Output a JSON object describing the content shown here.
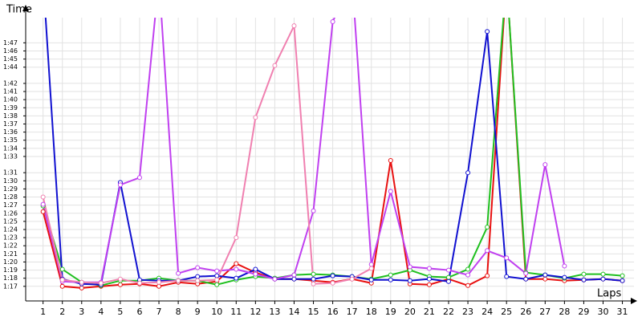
{
  "chart_data": {
    "type": "line",
    "y_label": "Time",
    "x_label": "Laps",
    "x": [
      1,
      2,
      3,
      4,
      5,
      6,
      7,
      8,
      9,
      10,
      11,
      12,
      13,
      14,
      15,
      16,
      17,
      18,
      19,
      20,
      21,
      22,
      23,
      24,
      25,
      26,
      27,
      28,
      29,
      30,
      31
    ],
    "xlim": [
      0.1,
      31.6
    ],
    "xticks": [
      1,
      2,
      3,
      4,
      5,
      6,
      7,
      8,
      9,
      10,
      11,
      12,
      13,
      14,
      15,
      16,
      17,
      18,
      19,
      20,
      21,
      22,
      23,
      24,
      25,
      26,
      27,
      28,
      29,
      30,
      31
    ],
    "ylim": [
      75.2,
      110.1
    ],
    "yticks": [
      {
        "value": 77,
        "label": "1:17"
      },
      {
        "value": 78,
        "label": "1:18"
      },
      {
        "value": 79,
        "label": "1:19"
      },
      {
        "value": 80,
        "label": "1:20"
      },
      {
        "value": 81,
        "label": "1:21"
      },
      {
        "value": 82,
        "label": "1:22"
      },
      {
        "value": 83,
        "label": "1:23"
      },
      {
        "value": 84,
        "label": "1:24"
      },
      {
        "value": 85,
        "label": "1:25"
      },
      {
        "value": 86,
        "label": "1:26"
      },
      {
        "value": 87,
        "label": "1:27"
      },
      {
        "value": 88,
        "label": "1:28"
      },
      {
        "value": 89,
        "label": "1:29"
      },
      {
        "value": 90,
        "label": "1:30"
      },
      {
        "value": 91,
        "label": "1:31"
      },
      {
        "value": 93,
        "label": "1:33"
      },
      {
        "value": 94,
        "label": "1:34"
      },
      {
        "value": 95,
        "label": "1:35"
      },
      {
        "value": 96,
        "label": "1:36"
      },
      {
        "value": 97,
        "label": "1:37"
      },
      {
        "value": 98,
        "label": "1:38"
      },
      {
        "value": 99,
        "label": "1:39"
      },
      {
        "value": 100,
        "label": "1:40"
      },
      {
        "value": 101,
        "label": "1:41"
      },
      {
        "value": 102,
        "label": "1:42"
      },
      {
        "value": 104,
        "label": "1:44"
      },
      {
        "value": 105,
        "label": "1:45"
      },
      {
        "value": 106,
        "label": "1:46"
      },
      {
        "value": 107,
        "label": "1:47"
      }
    ],
    "grid": true,
    "series": [
      {
        "color": "#e81010",
        "values": [
          86.2,
          77.0,
          76.8,
          77.0,
          77.2,
          77.3,
          77.0,
          77.5,
          77.3,
          77.6,
          79.8,
          78.7,
          77.9,
          77.9,
          77.7,
          77.5,
          77.9,
          77.4,
          92.5,
          77.3,
          77.2,
          77.9,
          77.1,
          78.3,
          115,
          77.9,
          77.9,
          77.7,
          77.8,
          77.9,
          77.7
        ]
      },
      {
        "color": "#20c020",
        "values": [
          86.9,
          79.1,
          77.5,
          77.1,
          77.7,
          77.7,
          78.0,
          77.7,
          77.7,
          77.2,
          77.8,
          78.2,
          78.0,
          78.4,
          78.5,
          78.4,
          78.2,
          77.9,
          78.4,
          79.0,
          78.2,
          78.1,
          79.1,
          84.3,
          115,
          78.7,
          78.4,
          78.0,
          78.5,
          78.5,
          78.3
        ]
      },
      {
        "color": "#1010d0",
        "values": [
          115,
          77.9,
          77.3,
          77.2,
          89.8,
          77.8,
          77.7,
          77.7,
          78.2,
          78.3,
          78.0,
          79.1,
          77.9,
          77.9,
          77.9,
          78.3,
          78.2,
          77.8,
          77.8,
          77.7,
          77.9,
          77.6,
          91.0,
          108.4,
          78.2,
          77.9,
          78.4,
          78.1,
          77.8,
          77.9,
          77.7
        ]
      },
      {
        "color": "#c040f0",
        "values": [
          87.1,
          77.6,
          77.5,
          77.5,
          89.5,
          90.4,
          115,
          78.6,
          79.3,
          78.9,
          79.1,
          78.5,
          77.9,
          78.4,
          86.3,
          109.6,
          115,
          79.7,
          88.7,
          79.4,
          79.2,
          79.0,
          78.4,
          81.4,
          80.5,
          78.6,
          92.0,
          79.5,
          null,
          null,
          null
        ]
      },
      {
        "color": "#f080b0",
        "values": [
          88.0,
          77.8,
          77.5,
          77.4,
          77.9,
          77.4,
          77.5,
          77.7,
          77.7,
          77.8,
          83.0,
          97.8,
          104.2,
          109.1,
          77.3,
          77.4,
          77.9,
          79.2,
          null,
          null,
          null,
          null,
          null,
          null,
          null,
          null,
          null,
          null,
          null,
          null,
          null
        ]
      }
    ]
  }
}
